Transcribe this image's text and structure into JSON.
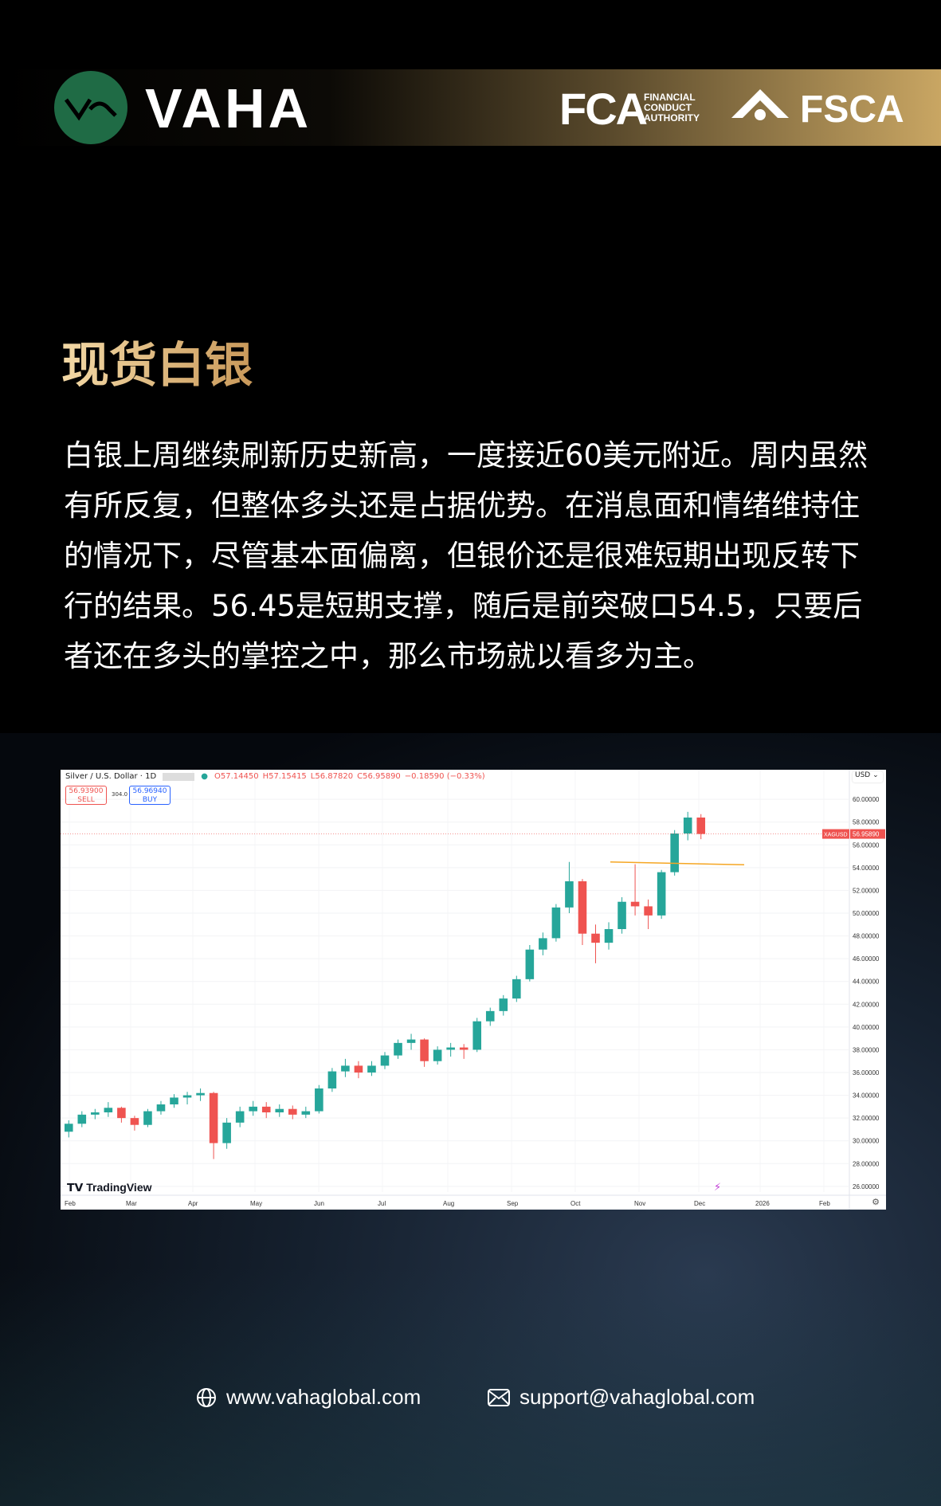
{
  "header": {
    "brand": "VAHA",
    "regulator1": "FCA",
    "regulator1_sub": [
      "FINANCIAL",
      "CONDUCT",
      "AUTHORITY"
    ],
    "regulator2": "FSCA",
    "logo_color": "#1f6b45"
  },
  "title": "现货白银",
  "paragraph": "白银上周继续刷新历史新高，一度接近60美元附近。周内虽然有所反复，但整体多头还是占据优势。在消息面和情绪维持住的情况下，尽管基本面偏离，但银价还是很难短期出现反转下行的结果。56.45是短期支撑，随后是前突破口54.5，只要后者还在多头的掌控之中，那么市场就以看多为主。",
  "chart": {
    "symbol": "Silver / U.S. Dollar · 1D",
    "ohlc": {
      "o": "O57.14450",
      "h": "H57.15415",
      "l": "L56.87820",
      "c": "C56.95890",
      "chg": "−0.18590 (−0.33%)"
    },
    "sell": {
      "price": "56.93900",
      "label": "SELL"
    },
    "spread": "304.0",
    "buy": {
      "price": "56.96940",
      "label": "BUY"
    },
    "currency": "USD",
    "ticker": "XAGUSD",
    "last": "56.95890",
    "watermark": "TradingView",
    "up_color": "#26a69a",
    "down_color": "#ef5350",
    "line_color": "#f5a623",
    "y_ticks": [
      "60.00000",
      "58.00000",
      "56.00000",
      "54.00000",
      "52.00000",
      "50.00000",
      "48.00000",
      "46.00000",
      "44.00000",
      "42.00000",
      "40.00000",
      "38.00000",
      "36.00000",
      "34.00000",
      "32.00000",
      "30.00000",
      "28.00000",
      "26.00000"
    ],
    "x_ticks": [
      "Feb",
      "Mar",
      "Apr",
      "May",
      "Jun",
      "Jul",
      "Aug",
      "Sep",
      "Oct",
      "Nov",
      "Dec",
      "2026",
      "Feb"
    ],
    "ylim": [
      25.5,
      61.2
    ],
    "resistance": 54.5
  },
  "chart_data": {
    "type": "candlestick",
    "weekly_ohlc": [
      [
        30.8,
        31.8,
        30.3,
        31.5
      ],
      [
        31.5,
        32.6,
        31.2,
        32.3
      ],
      [
        32.3,
        32.8,
        31.9,
        32.5
      ],
      [
        32.5,
        33.4,
        32.1,
        32.9
      ],
      [
        32.9,
        33.0,
        31.6,
        32.0
      ],
      [
        32.0,
        32.2,
        30.9,
        31.4
      ],
      [
        31.4,
        32.8,
        31.2,
        32.6
      ],
      [
        32.6,
        33.5,
        32.3,
        33.2
      ],
      [
        33.2,
        34.1,
        32.9,
        33.8
      ],
      [
        33.8,
        34.3,
        33.2,
        34.0
      ],
      [
        34.0,
        34.6,
        33.5,
        34.2
      ],
      [
        34.2,
        34.3,
        28.4,
        29.8
      ],
      [
        29.8,
        32.0,
        29.3,
        31.6
      ],
      [
        31.6,
        33.0,
        31.2,
        32.6
      ],
      [
        32.6,
        33.5,
        32.2,
        33.0
      ],
      [
        33.0,
        33.4,
        32.0,
        32.5
      ],
      [
        32.5,
        33.2,
        32.1,
        32.8
      ],
      [
        32.8,
        33.1,
        31.9,
        32.3
      ],
      [
        32.3,
        33.0,
        32.0,
        32.6
      ],
      [
        32.6,
        34.9,
        32.4,
        34.6
      ],
      [
        34.6,
        36.4,
        34.3,
        36.1
      ],
      [
        36.1,
        37.2,
        35.6,
        36.6
      ],
      [
        36.6,
        37.0,
        35.5,
        36.0
      ],
      [
        36.0,
        37.0,
        35.7,
        36.6
      ],
      [
        36.6,
        37.8,
        36.3,
        37.5
      ],
      [
        37.5,
        38.9,
        37.2,
        38.6
      ],
      [
        38.6,
        39.4,
        38.0,
        38.9
      ],
      [
        38.9,
        39.0,
        36.5,
        37.0
      ],
      [
        37.0,
        38.3,
        36.7,
        38.0
      ],
      [
        38.0,
        38.6,
        37.4,
        38.2
      ],
      [
        38.2,
        38.5,
        37.2,
        38.0
      ],
      [
        38.0,
        40.8,
        37.8,
        40.5
      ],
      [
        40.5,
        41.7,
        40.1,
        41.4
      ],
      [
        41.4,
        42.8,
        41.0,
        42.5
      ],
      [
        42.5,
        44.5,
        42.2,
        44.2
      ],
      [
        44.2,
        47.2,
        44.0,
        46.8
      ],
      [
        46.8,
        48.3,
        46.3,
        47.8
      ],
      [
        47.8,
        50.8,
        47.5,
        50.5
      ],
      [
        50.5,
        54.5,
        50.0,
        52.8
      ],
      [
        52.8,
        53.0,
        47.2,
        48.2
      ],
      [
        48.2,
        49.0,
        45.6,
        47.4
      ],
      [
        47.4,
        49.2,
        46.8,
        48.6
      ],
      [
        48.6,
        51.4,
        48.2,
        51.0
      ],
      [
        51.0,
        54.3,
        49.8,
        50.6
      ],
      [
        50.6,
        51.2,
        48.6,
        49.8
      ],
      [
        49.8,
        53.8,
        49.5,
        53.6
      ],
      [
        53.6,
        57.3,
        53.3,
        57.0
      ],
      [
        57.0,
        58.9,
        56.4,
        58.4
      ],
      [
        58.4,
        58.7,
        56.5,
        56.96
      ]
    ]
  },
  "footer": {
    "website": "www.vahaglobal.com",
    "email": "support@vahaglobal.com"
  }
}
